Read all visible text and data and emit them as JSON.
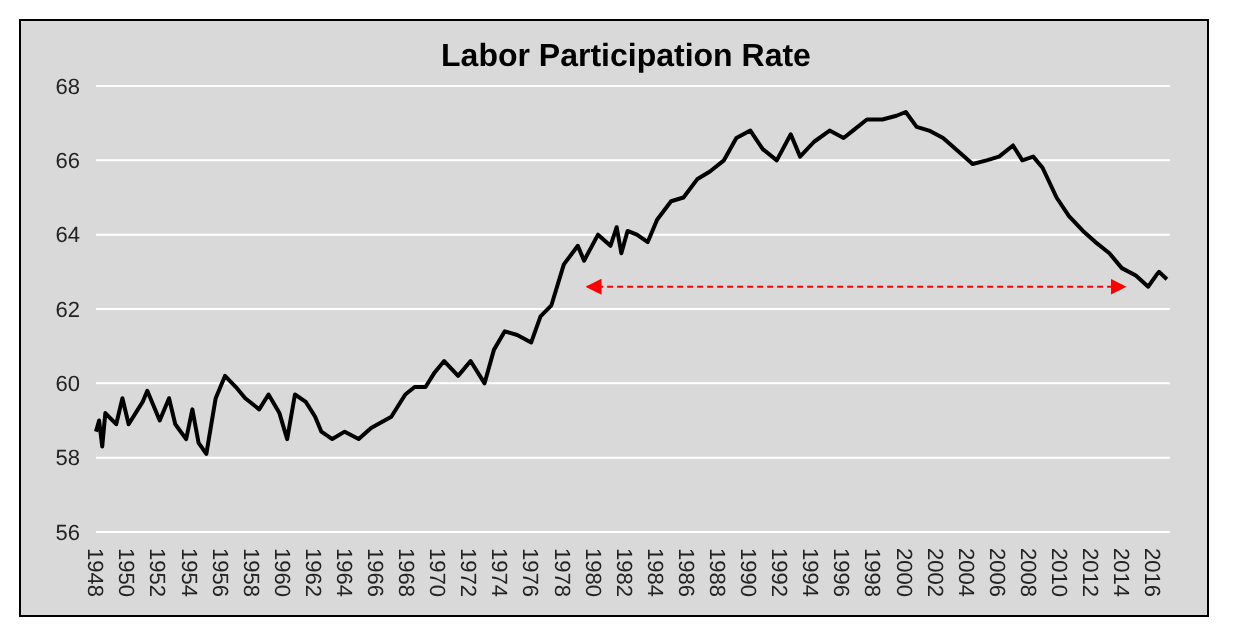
{
  "chart_data": {
    "type": "line",
    "title": "Labor Participation Rate",
    "x": [
      1948.0,
      1948.2,
      1948.4,
      1948.6,
      1949.3,
      1949.7,
      1950.1,
      1951.0,
      1951.3,
      1952.1,
      1952.7,
      1953.1,
      1953.8,
      1954.2,
      1954.6,
      1955.1,
      1955.7,
      1956.3,
      1957.0,
      1957.6,
      1958.5,
      1959.1,
      1959.8,
      1960.3,
      1960.8,
      1961.5,
      1962.1,
      1962.5,
      1963.2,
      1964.0,
      1964.9,
      1965.7,
      1967.0,
      1967.9,
      1968.5,
      1969.2,
      1969.8,
      1970.4,
      1971.3,
      1972.1,
      1973.0,
      1973.6,
      1974.3,
      1975.1,
      1976.0,
      1976.6,
      1977.3,
      1978.1,
      1979.0,
      1979.4,
      1980.3,
      1981.1,
      1981.5,
      1981.8,
      1982.2,
      1982.8,
      1983.5,
      1984.1,
      1985.0,
      1985.8,
      1986.7,
      1987.5,
      1988.4,
      1989.2,
      1990.1,
      1990.9,
      1991.8,
      1992.7,
      1993.3,
      1994.2,
      1995.2,
      1996.1,
      1996.7,
      1997.6,
      1998.6,
      1999.5,
      2000.1,
      2000.8,
      2001.6,
      2002.5,
      2003.6,
      2004.4,
      2005.3,
      2006.1,
      2007.0,
      2007.6,
      2008.3,
      2008.9,
      2009.8,
      2010.6,
      2011.5,
      2012.3,
      2013.2,
      2014.0,
      2014.9,
      2015.7,
      2016.2,
      2016.4,
      2016.9
    ],
    "series": [
      {
        "type": "line",
        "color": "#000000",
        "values": [
          58.7,
          59.0,
          58.3,
          59.2,
          58.9,
          59.6,
          58.9,
          59.5,
          59.8,
          59.0,
          59.6,
          58.9,
          58.5,
          59.3,
          58.4,
          58.1,
          59.6,
          60.2,
          59.9,
          59.6,
          59.3,
          59.7,
          59.2,
          58.5,
          59.7,
          59.5,
          59.1,
          58.7,
          58.5,
          58.7,
          58.5,
          58.8,
          59.1,
          59.7,
          59.9,
          59.9,
          60.3,
          60.6,
          60.2,
          60.6,
          60.0,
          60.9,
          61.4,
          61.3,
          61.1,
          61.8,
          62.1,
          63.2,
          63.7,
          63.3,
          64.0,
          63.7,
          64.2,
          63.5,
          64.1,
          64.0,
          63.8,
          64.4,
          64.9,
          65.0,
          65.5,
          65.7,
          66.0,
          66.6,
          66.8,
          66.3,
          66.0,
          66.7,
          66.1,
          66.5,
          66.8,
          66.6,
          66.8,
          67.1,
          67.1,
          67.2,
          67.3,
          66.9,
          66.8,
          66.6,
          66.2,
          65.9,
          66.0,
          66.1,
          66.4,
          66.0,
          66.1,
          65.8,
          65.0,
          64.5,
          64.1,
          63.8,
          63.5,
          63.1,
          62.9,
          62.6,
          62.9,
          63.0,
          62.8
        ]
      },
      {
        "type": "line",
        "color": "#ff0000",
        "line_style": "dashed",
        "x": [
          1979.6,
          2014.2
        ],
        "values": [
          62.6,
          62.6
        ]
      }
    ],
    "xlim": [
      1948,
      2017.1
    ],
    "xticks": [
      1948,
      1950,
      1952,
      1954,
      1956,
      1958,
      1960,
      1962,
      1964,
      1966,
      1968,
      1970,
      1972,
      1974,
      1976,
      1978,
      1980,
      1982,
      1984,
      1986,
      1988,
      1990,
      1992,
      1994,
      1996,
      1998,
      2000,
      2002,
      2004,
      2006,
      2008,
      2010,
      2012,
      2014,
      2016
    ],
    "ylim": [
      56,
      68
    ],
    "yticks": [
      56,
      58,
      60,
      62,
      64,
      66,
      68
    ],
    "grid": "y"
  }
}
